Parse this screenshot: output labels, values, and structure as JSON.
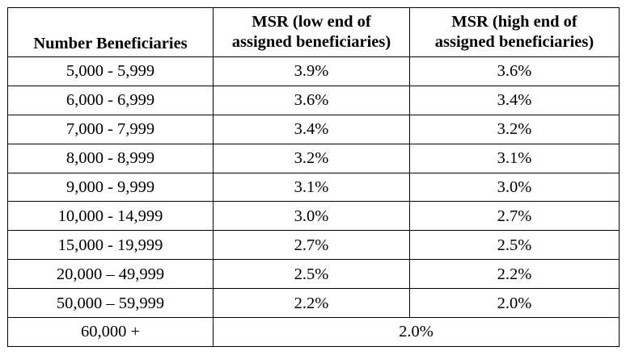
{
  "table": {
    "headers": {
      "col1": "Number Beneficiaries",
      "col2_line1": "MSR (low end of",
      "col2_line2": "assigned beneficiaries)",
      "col3_line1": "MSR (high end of",
      "col3_line2": "assigned beneficiaries)"
    },
    "rows": [
      {
        "range": "5,000 - 5,999",
        "low": "3.9%",
        "high": "3.6%"
      },
      {
        "range": "6,000 - 6,999",
        "low": "3.6%",
        "high": "3.4%"
      },
      {
        "range": "7,000 - 7,999",
        "low": "3.4%",
        "high": "3.2%"
      },
      {
        "range": "8,000 - 8,999",
        "low": "3.2%",
        "high": "3.1%"
      },
      {
        "range": "9,000 - 9,999",
        "low": "3.1%",
        "high": "3.0%"
      },
      {
        "range": "10,000 - 14,999",
        "low": "3.0%",
        "high": "2.7%"
      },
      {
        "range": "15,000 - 19,999",
        "low": "2.7%",
        "high": "2.5%"
      },
      {
        "range": "20,000 – 49,999",
        "low": "2.5%",
        "high": "2.2%"
      },
      {
        "range": "50,000 – 59,999",
        "low": "2.2%",
        "high": "2.0%"
      }
    ],
    "final_row": {
      "range": "60,000 +",
      "value": "2.0%"
    }
  }
}
